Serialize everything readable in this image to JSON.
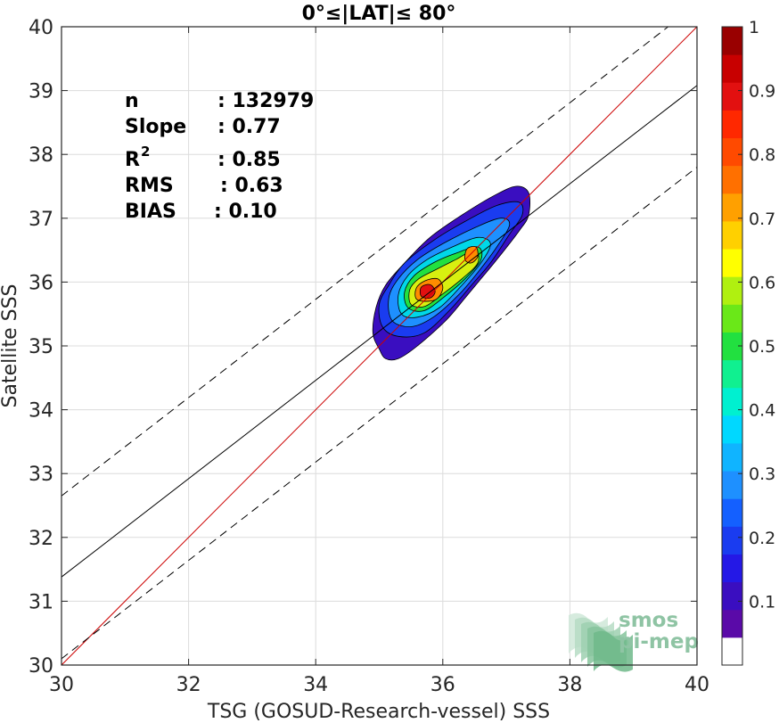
{
  "chart_data": {
    "type": "heatmap",
    "subtype": "density-scatter-contour",
    "title": "0°≤|LAT|≤ 80°",
    "xlabel": "TSG (GOSUD-Research-vessel) SSS",
    "ylabel": "Satellite SSS",
    "xlim": [
      30,
      40
    ],
    "ylim": [
      30,
      40
    ],
    "xticks": [
      30,
      32,
      34,
      36,
      38,
      40
    ],
    "yticks": [
      30,
      31,
      32,
      33,
      34,
      35,
      36,
      37,
      38,
      39,
      40
    ],
    "grid": true,
    "stats": [
      {
        "label": "n",
        "value": ": 132979"
      },
      {
        "label": "Slope",
        "value": ": 0.77"
      },
      {
        "label": "R",
        "sup": "2",
        "value": ": 0.85"
      },
      {
        "label": "RMS",
        "value": ": 0.63"
      },
      {
        "label": "BIAS",
        "value": ": 0.10"
      }
    ],
    "lines": [
      {
        "name": "identity",
        "color": "#cc0000",
        "style": "solid",
        "p1": [
          30,
          30
        ],
        "p2": [
          40,
          40
        ]
      },
      {
        "name": "regression",
        "color": "#000000",
        "style": "solid",
        "p1": [
          30,
          31.38
        ],
        "p2": [
          40,
          39.08
        ]
      },
      {
        "name": "regression-upper",
        "color": "#000000",
        "style": "dashed",
        "p1": [
          30,
          32.65
        ],
        "p2": [
          40,
          40.35
        ]
      },
      {
        "name": "regression-lower",
        "color": "#000000",
        "style": "dashed",
        "p1": [
          30,
          30.1
        ],
        "p2": [
          40,
          37.8
        ]
      }
    ],
    "density_contours": [
      {
        "level": 0.05,
        "color": "#3a0ec0",
        "points": [
          [
            35.0,
            34.95
          ],
          [
            34.9,
            35.2
          ],
          [
            34.95,
            35.6
          ],
          [
            35.1,
            35.95
          ],
          [
            35.4,
            36.3
          ],
          [
            35.8,
            36.7
          ],
          [
            36.3,
            37.05
          ],
          [
            36.8,
            37.35
          ],
          [
            37.15,
            37.5
          ],
          [
            37.35,
            37.4
          ],
          [
            37.35,
            37.05
          ],
          [
            37.2,
            36.8
          ],
          [
            36.85,
            36.35
          ],
          [
            36.6,
            36.05
          ],
          [
            36.35,
            35.75
          ],
          [
            36.05,
            35.4
          ],
          [
            35.6,
            35.0
          ],
          [
            35.3,
            34.8
          ],
          [
            35.1,
            34.8
          ]
        ]
      },
      {
        "level": 0.15,
        "color": "#1a3cf0",
        "points": [
          [
            35.05,
            35.3
          ],
          [
            35.0,
            35.65
          ],
          [
            35.15,
            35.95
          ],
          [
            35.4,
            36.3
          ],
          [
            35.85,
            36.65
          ],
          [
            36.35,
            36.95
          ],
          [
            36.85,
            37.2
          ],
          [
            37.2,
            37.25
          ],
          [
            37.25,
            37.05
          ],
          [
            37.05,
            36.75
          ],
          [
            36.75,
            36.3
          ],
          [
            36.45,
            35.95
          ],
          [
            36.1,
            35.55
          ],
          [
            35.7,
            35.2
          ],
          [
            35.3,
            35.15
          ]
        ]
      },
      {
        "level": 0.25,
        "color": "#1e90ff",
        "points": [
          [
            35.2,
            35.4
          ],
          [
            35.15,
            35.75
          ],
          [
            35.3,
            36.05
          ],
          [
            35.6,
            36.35
          ],
          [
            36.0,
            36.6
          ],
          [
            36.5,
            36.85
          ],
          [
            36.9,
            37.0
          ],
          [
            37.05,
            36.9
          ],
          [
            36.85,
            36.55
          ],
          [
            36.55,
            36.15
          ],
          [
            36.25,
            35.8
          ],
          [
            35.85,
            35.45
          ],
          [
            35.5,
            35.3
          ]
        ]
      },
      {
        "level": 0.35,
        "color": "#00d8e8",
        "points": [
          [
            35.35,
            35.5
          ],
          [
            35.3,
            35.8
          ],
          [
            35.45,
            36.1
          ],
          [
            35.75,
            36.35
          ],
          [
            36.15,
            36.55
          ],
          [
            36.55,
            36.7
          ],
          [
            36.75,
            36.6
          ],
          [
            36.6,
            36.3
          ],
          [
            36.3,
            35.95
          ],
          [
            35.95,
            35.6
          ],
          [
            35.6,
            35.45
          ]
        ]
      },
      {
        "level": 0.45,
        "color": "#22e040",
        "points": [
          [
            35.45,
            35.6
          ],
          [
            35.4,
            35.85
          ],
          [
            35.55,
            36.1
          ],
          [
            35.85,
            36.3
          ],
          [
            36.2,
            36.45
          ],
          [
            36.55,
            36.55
          ],
          [
            36.6,
            36.35
          ],
          [
            36.35,
            36.05
          ],
          [
            36.0,
            35.75
          ],
          [
            35.7,
            35.55
          ]
        ]
      },
      {
        "level": 0.55,
        "color": "#d8f010",
        "points": [
          [
            35.5,
            35.65
          ],
          [
            35.48,
            35.88
          ],
          [
            35.62,
            36.05
          ],
          [
            35.9,
            36.2
          ],
          [
            36.2,
            36.35
          ],
          [
            36.5,
            36.5
          ],
          [
            36.55,
            36.3
          ],
          [
            36.3,
            36.05
          ],
          [
            35.98,
            35.8
          ],
          [
            35.72,
            35.62
          ]
        ]
      },
      {
        "level": 0.7,
        "color": "#ff8c00",
        "points": [
          [
            35.6,
            35.72
          ],
          [
            35.58,
            35.9
          ],
          [
            35.72,
            36.02
          ],
          [
            35.92,
            36.05
          ],
          [
            36.0,
            35.9
          ],
          [
            35.88,
            35.72
          ]
        ]
      },
      {
        "level": 0.7,
        "color": "#ff8c00",
        "points": [
          [
            36.35,
            36.35
          ],
          [
            36.38,
            36.52
          ],
          [
            36.52,
            36.55
          ],
          [
            36.55,
            36.4
          ],
          [
            36.45,
            36.3
          ]
        ]
      },
      {
        "level": 0.9,
        "color": "#e21010",
        "points": [
          [
            35.66,
            35.78
          ],
          [
            35.66,
            35.92
          ],
          [
            35.8,
            35.96
          ],
          [
            35.88,
            35.85
          ],
          [
            35.8,
            35.75
          ]
        ]
      }
    ],
    "colorbar": {
      "ticks": [
        0.1,
        0.2,
        0.3,
        0.4,
        0.5,
        0.6,
        0.7,
        0.8,
        0.9,
        1
      ],
      "tick_labels": [
        "0.1",
        "0.2",
        "0.3",
        "0.4",
        "0.5",
        "0.6",
        "0.7",
        "0.8",
        "0.9",
        "1"
      ],
      "range": [
        0,
        1
      ],
      "colors": [
        "#ffffff",
        "#5a0aa8",
        "#3a0ec0",
        "#2418e6",
        "#1a3cf0",
        "#1460ff",
        "#1e90ff",
        "#10b4ff",
        "#00d8ff",
        "#00f0d0",
        "#10f090",
        "#22e040",
        "#6ae818",
        "#b0f010",
        "#ffff00",
        "#ffd000",
        "#ffa000",
        "#ff7000",
        "#ff4a00",
        "#ff2800",
        "#e21010",
        "#c80000",
        "#990000"
      ]
    },
    "logo": [
      "smos",
      "pi-mep"
    ]
  }
}
